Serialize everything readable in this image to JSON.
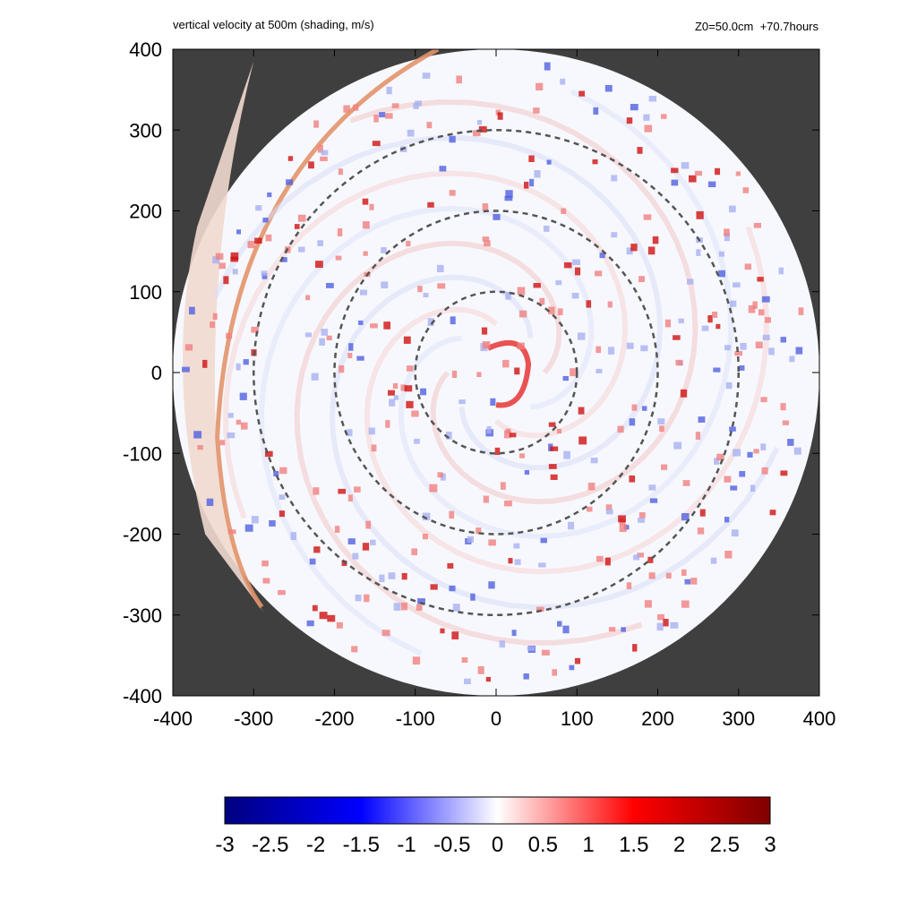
{
  "header": {
    "left_title": "vertical velocity at 500m (shading, m/s)",
    "right_title": "Z0=50.0cm  +70.7hours"
  },
  "chart_data": {
    "type": "heatmap",
    "title": "vertical velocity at 500m (shading, m/s)",
    "annotation": "Z0=50.0cm  +70.7hours",
    "xlim": [
      -400,
      400
    ],
    "ylim": [
      -400,
      400
    ],
    "x_ticks": [
      "-400",
      "-300",
      "-200",
      "-100",
      "0",
      "100",
      "200",
      "300",
      "400"
    ],
    "y_ticks": [
      "400",
      "300",
      "200",
      "100",
      "0",
      "-100",
      "-200",
      "-300",
      "-400"
    ],
    "domain_radius": 400,
    "range_rings": [
      100,
      200,
      300
    ],
    "background_color": "#3f3f3f",
    "colorbar": {
      "min": -3,
      "max": 3,
      "tick_labels": [
        "-3",
        "-2.5",
        "-2",
        "-1.5",
        "-1",
        "-0.5",
        "0",
        "0.5",
        "1",
        "1.5",
        "2",
        "2.5",
        "3"
      ],
      "colors": [
        "#00007f",
        "#0000ff",
        "#ffffff",
        "#ff0000",
        "#7f0000"
      ]
    }
  }
}
